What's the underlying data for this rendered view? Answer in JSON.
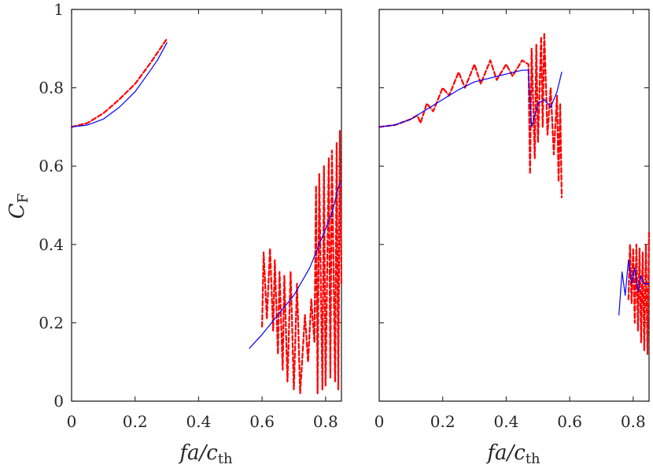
{
  "chart_data": [
    {
      "type": "line",
      "panel": "left",
      "xlabel": "fa/c_th",
      "ylabel": "C_F",
      "xlim": [
        0,
        0.85
      ],
      "ylim": [
        0,
        1
      ],
      "xticks": [
        "0",
        "0.2",
        "0.4",
        "0.6",
        "0.8"
      ],
      "yticks": [
        "0",
        "0.2",
        "0.4",
        "0.6",
        "0.8",
        "1"
      ],
      "series": [
        {
          "name": "blue",
          "color": "#0000ff",
          "style": "solid",
          "segments": [
            [
              [
                0.0,
                0.7
              ],
              [
                0.05,
                0.705
              ],
              [
                0.1,
                0.72
              ],
              [
                0.15,
                0.75
              ],
              [
                0.2,
                0.79
              ],
              [
                0.24,
                0.835
              ],
              [
                0.27,
                0.87
              ],
              [
                0.3,
                0.915
              ]
            ],
            [
              [
                0.56,
                0.135
              ],
              [
                0.6,
                0.17
              ],
              [
                0.65,
                0.22
              ],
              [
                0.7,
                0.27
              ],
              [
                0.75,
                0.34
              ],
              [
                0.78,
                0.4
              ],
              [
                0.8,
                0.44
              ],
              [
                0.82,
                0.48
              ],
              [
                0.845,
                0.56
              ]
            ]
          ]
        },
        {
          "name": "red",
          "color": "#ff0000",
          "style": "dashed",
          "segments": [
            [
              [
                0.0,
                0.7
              ],
              [
                0.05,
                0.71
              ],
              [
                0.1,
                0.735
              ],
              [
                0.15,
                0.77
              ],
              [
                0.2,
                0.81
              ],
              [
                0.25,
                0.865
              ],
              [
                0.3,
                0.925
              ]
            ],
            [
              [
                0.6,
                0.19
              ],
              [
                0.605,
                0.38
              ],
              [
                0.615,
                0.21
              ],
              [
                0.625,
                0.39
              ],
              [
                0.635,
                0.18
              ],
              [
                0.64,
                0.36
              ],
              [
                0.65,
                0.12
              ],
              [
                0.655,
                0.33
              ],
              [
                0.665,
                0.08
              ],
              [
                0.67,
                0.32
              ],
              [
                0.68,
                0.05
              ],
              [
                0.69,
                0.33
              ],
              [
                0.7,
                0.03
              ],
              [
                0.71,
                0.3
              ],
              [
                0.72,
                0.02
              ],
              [
                0.735,
                0.22
              ],
              [
                0.745,
                0.1
              ],
              [
                0.755,
                0.26
              ],
              [
                0.765,
                0.15
              ],
              [
                0.77,
                0.55
              ],
              [
                0.775,
                0.02
              ],
              [
                0.78,
                0.58
              ],
              [
                0.79,
                0.03
              ],
              [
                0.795,
                0.6
              ],
              [
                0.8,
                0.04
              ],
              [
                0.81,
                0.62
              ],
              [
                0.815,
                0.06
              ],
              [
                0.82,
                0.64
              ],
              [
                0.83,
                0.05
              ],
              [
                0.835,
                0.66
              ],
              [
                0.84,
                0.03
              ],
              [
                0.845,
                0.69
              ],
              [
                0.85,
                0.3
              ]
            ]
          ]
        }
      ]
    },
    {
      "type": "line",
      "panel": "right",
      "xlabel": "fa/c_th",
      "ylabel": "",
      "xlim": [
        0,
        0.85
      ],
      "ylim": [
        0,
        1
      ],
      "xticks": [
        "0",
        "0.2",
        "0.4",
        "0.6",
        "0.8"
      ],
      "yticks": [],
      "series": [
        {
          "name": "blue",
          "color": "#0000ff",
          "style": "solid",
          "segments": [
            [
              [
                0.0,
                0.7
              ],
              [
                0.05,
                0.705
              ],
              [
                0.1,
                0.72
              ],
              [
                0.15,
                0.745
              ],
              [
                0.2,
                0.77
              ],
              [
                0.25,
                0.795
              ],
              [
                0.3,
                0.815
              ],
              [
                0.35,
                0.825
              ],
              [
                0.4,
                0.835
              ],
              [
                0.45,
                0.845
              ],
              [
                0.47,
                0.845
              ],
              [
                0.48,
                0.7
              ],
              [
                0.5,
                0.76
              ],
              [
                0.52,
                0.77
              ],
              [
                0.54,
                0.75
              ],
              [
                0.56,
                0.79
              ],
              [
                0.575,
                0.84
              ]
            ],
            [
              [
                0.755,
                0.22
              ],
              [
                0.765,
                0.33
              ],
              [
                0.775,
                0.27
              ],
              [
                0.785,
                0.36
              ],
              [
                0.795,
                0.3
              ],
              [
                0.805,
                0.34
              ],
              [
                0.815,
                0.28
              ],
              [
                0.825,
                0.32
              ],
              [
                0.835,
                0.3
              ],
              [
                0.85,
                0.3
              ]
            ]
          ]
        },
        {
          "name": "red",
          "color": "#ff0000",
          "style": "dashed",
          "segments": [
            [
              [
                0.0,
                0.7
              ],
              [
                0.05,
                0.705
              ],
              [
                0.1,
                0.72
              ],
              [
                0.12,
                0.73
              ],
              [
                0.13,
                0.71
              ],
              [
                0.15,
                0.76
              ],
              [
                0.17,
                0.74
              ],
              [
                0.2,
                0.8
              ],
              [
                0.22,
                0.78
              ],
              [
                0.25,
                0.84
              ],
              [
                0.27,
                0.8
              ],
              [
                0.3,
                0.86
              ],
              [
                0.32,
                0.81
              ],
              [
                0.35,
                0.87
              ],
              [
                0.37,
                0.82
              ],
              [
                0.4,
                0.86
              ],
              [
                0.42,
                0.83
              ],
              [
                0.45,
                0.87
              ],
              [
                0.47,
                0.86
              ],
              [
                0.475,
                0.58
              ],
              [
                0.48,
                0.9
              ],
              [
                0.49,
                0.62
              ],
              [
                0.495,
                0.91
              ],
              [
                0.5,
                0.66
              ],
              [
                0.51,
                0.93
              ],
              [
                0.515,
                0.7
              ],
              [
                0.52,
                0.94
              ],
              [
                0.53,
                0.68
              ],
              [
                0.54,
                0.8
              ],
              [
                0.55,
                0.63
              ],
              [
                0.56,
                0.78
              ],
              [
                0.565,
                0.56
              ],
              [
                0.57,
                0.76
              ],
              [
                0.575,
                0.52
              ]
            ],
            [
              [
                0.785,
                0.26
              ],
              [
                0.79,
                0.4
              ],
              [
                0.795,
                0.25
              ],
              [
                0.8,
                0.39
              ],
              [
                0.805,
                0.2
              ],
              [
                0.81,
                0.4
              ],
              [
                0.815,
                0.18
              ],
              [
                0.82,
                0.39
              ],
              [
                0.825,
                0.15
              ],
              [
                0.83,
                0.38
              ],
              [
                0.835,
                0.13
              ],
              [
                0.84,
                0.4
              ],
              [
                0.845,
                0.12
              ],
              [
                0.85,
                0.43
              ]
            ]
          ]
        }
      ]
    }
  ]
}
